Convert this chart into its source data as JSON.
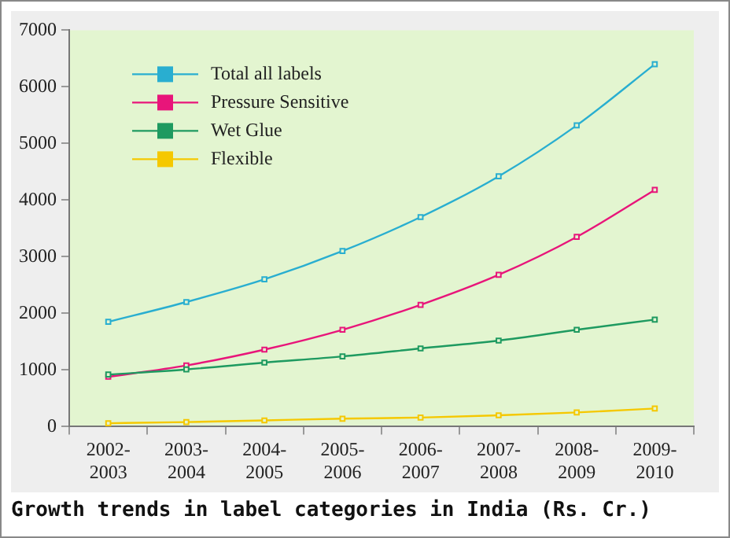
{
  "chart_data": {
    "type": "line",
    "categories": [
      "2002-\n2003",
      "2003-\n2004",
      "2004-\n2005",
      "2005-\n2006",
      "2006-\n2007",
      "2007-\n2008",
      "2008-\n2009",
      "2009-\n2010"
    ],
    "series": [
      {
        "name": "Total all labels",
        "color": "#29aed0",
        "values": [
          1850,
          2200,
          2600,
          3100,
          3700,
          4420,
          5320,
          6400
        ]
      },
      {
        "name": "Pressure Sensitive",
        "color": "#e8157a",
        "values": [
          880,
          1080,
          1360,
          1710,
          2150,
          2680,
          3350,
          4180
        ]
      },
      {
        "name": "Wet Glue",
        "color": "#1e9a60",
        "values": [
          920,
          1010,
          1130,
          1240,
          1380,
          1520,
          1710,
          1890
        ]
      },
      {
        "name": "Flexible",
        "color": "#f5c800",
        "values": [
          60,
          80,
          110,
          140,
          160,
          200,
          250,
          320
        ]
      }
    ],
    "ylim": [
      0,
      7000
    ],
    "yticks": [
      0,
      1000,
      2000,
      3000,
      4000,
      5000,
      6000,
      7000
    ],
    "grid": false,
    "legend": "top left",
    "marker": "square",
    "line_style": "solid",
    "annotations": [
      "Growth trends in label categories in India (Rs. Cr.)"
    ]
  }
}
